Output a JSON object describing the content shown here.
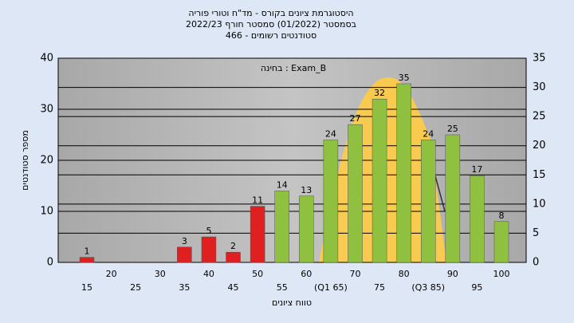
{
  "chart_data": {
    "type": "bar",
    "title": [
      "היסטוגרמת ציונים בקורס - מד\"ח וטורי פוריה",
      "בסמסטר  (01/2022)  סמסטר חורף 2022/23",
      "סטודנטים רשומים - 466"
    ],
    "annotation": "בחינה : Exam_B",
    "x_label": "טווח ציונים",
    "y_label": "מספר סטודנטים",
    "categories": [
      "15",
      "20",
      "25",
      "30",
      "35",
      "40",
      "45",
      "50",
      "55",
      "60",
      "(Q1 65)",
      "70",
      "75",
      "80",
      "(Q3 85)",
      "90",
      "95",
      "100"
    ],
    "values": [
      1,
      0,
      0,
      0,
      3,
      5,
      2,
      11,
      14,
      13,
      24,
      27,
      32,
      35,
      24,
      25,
      17,
      8
    ],
    "colors": [
      "#e02020",
      "#e02020",
      "#e02020",
      "#e02020",
      "#e02020",
      "#e02020",
      "#e02020",
      "#e02020",
      "#8fc040",
      "#8fc040",
      "#8fc040",
      "#8fc040",
      "#8fc040",
      "#8fc040",
      "#8fc040",
      "#8fc040",
      "#8fc040",
      "#8fc040"
    ],
    "ylim": [
      0,
      40
    ],
    "yticks": [
      0,
      10,
      20,
      30,
      40
    ],
    "y2lim": [
      0,
      35
    ],
    "y2ticks": [
      0,
      5,
      10,
      15,
      20,
      25,
      30,
      35
    ],
    "grid": true
  }
}
